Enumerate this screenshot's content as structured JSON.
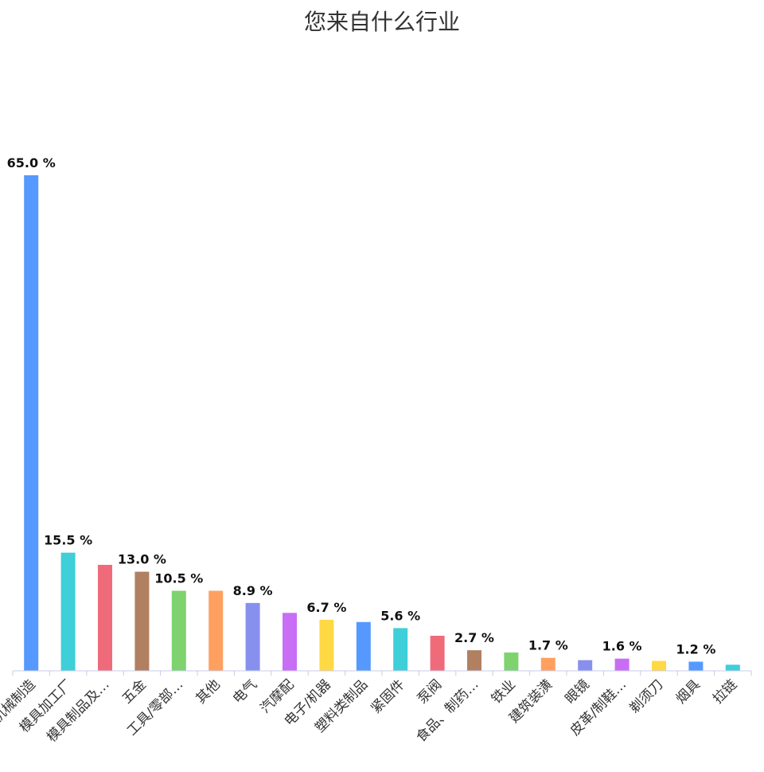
{
  "chart_data": {
    "type": "bar",
    "title": "您来自什么行业",
    "xlabel": "",
    "ylabel": "",
    "grid": false,
    "legend": "none",
    "categories": [
      "机械制造",
      "模具加工厂",
      "模具制品及…",
      "五金",
      "工具/零部…",
      "其他",
      "电气",
      "汽摩配",
      "电子/机器",
      "塑料类制品",
      "紧固件",
      "泵阀",
      "食品、制药…",
      "铁业",
      "建筑装潢",
      "眼镜",
      "皮革/制鞋…",
      "剃须刀",
      "烟具",
      "拉链"
    ],
    "values": [
      65.0,
      15.5,
      13.9,
      13.0,
      10.5,
      10.5,
      8.9,
      7.6,
      6.7,
      6.4,
      5.6,
      4.6,
      2.7,
      2.4,
      1.7,
      1.4,
      1.6,
      1.3,
      1.2,
      0.8
    ],
    "data_labels": [
      "65.0 %",
      "15.5 %",
      "",
      "13.0 %",
      "10.5 %",
      "",
      "8.9 %",
      "",
      "6.7 %",
      "",
      "5.6 %",
      "",
      "2.7 %",
      "",
      "1.7 %",
      "",
      "1.6 %",
      "",
      "1.2 %",
      ""
    ],
    "ylim": [
      0,
      65
    ],
    "colors": [
      "#5599ff",
      "#3ecfd8",
      "#f06b7a",
      "#b08060",
      "#7ed36f",
      "#ffa060",
      "#8890ee",
      "#c86ef5",
      "#ffd944",
      "#5599ff",
      "#3ecfd8",
      "#f06b7a",
      "#b08060",
      "#7ed36f",
      "#ffa060",
      "#8890ee",
      "#c86ef5",
      "#ffd944",
      "#5599ff",
      "#3ecfd8"
    ],
    "axis_color": "#c8cbea"
  }
}
